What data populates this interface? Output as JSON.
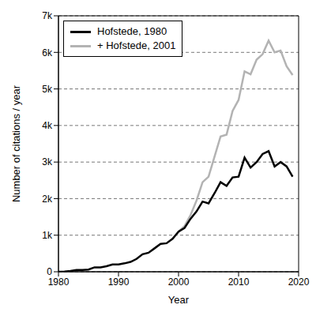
{
  "chart_data": {
    "type": "line",
    "x_label": "Year",
    "y_label": "Number of citations / year",
    "x": [
      1980,
      1981,
      1982,
      1983,
      1984,
      1985,
      1986,
      1987,
      1988,
      1989,
      1990,
      1991,
      1992,
      1993,
      1994,
      1995,
      1996,
      1997,
      1998,
      1999,
      2000,
      2001,
      2002,
      2003,
      2004,
      2005,
      2006,
      2007,
      2008,
      2009,
      2010,
      2011,
      2012,
      2013,
      2014,
      2015,
      2016,
      2017,
      2018,
      2019
    ],
    "series": [
      {
        "name": "Hofstede, 1980",
        "color": "#000000",
        "values": [
          0,
          5,
          20,
          50,
          50,
          60,
          120,
          120,
          150,
          200,
          200,
          230,
          270,
          350,
          480,
          520,
          640,
          760,
          780,
          900,
          1100,
          1200,
          1450,
          1650,
          1920,
          1870,
          2150,
          2450,
          2350,
          2580,
          2600,
          3120,
          2850,
          3000,
          3220,
          3300,
          2880,
          3000,
          2880,
          2600
        ]
      },
      {
        "name": "+ Hofstede, 2001",
        "color": "#b3b3b3",
        "values": [
          null,
          null,
          null,
          null,
          null,
          null,
          null,
          null,
          null,
          null,
          null,
          null,
          null,
          null,
          null,
          null,
          null,
          null,
          null,
          null,
          1100,
          1250,
          1550,
          1950,
          2450,
          2600,
          3150,
          3700,
          3750,
          4400,
          4700,
          5480,
          5400,
          5800,
          5950,
          6320,
          6000,
          6050,
          5620,
          5380
        ]
      }
    ],
    "xlim": [
      1980,
      2020
    ],
    "xticks": [
      1980,
      1990,
      2000,
      2010,
      2020
    ],
    "ylim": [
      0,
      7000
    ],
    "yticks": [
      0,
      {
        "value": 1000,
        "label": "1k"
      },
      {
        "value": 2000,
        "label": "2k"
      },
      {
        "value": 3000,
        "label": "3k"
      },
      {
        "value": 4000,
        "label": "4k"
      },
      {
        "value": 5000,
        "label": "5k"
      },
      {
        "value": 6000,
        "label": "6k"
      },
      {
        "value": 7000,
        "label": "7k"
      }
    ],
    "grid": true,
    "legend": "upper left"
  }
}
